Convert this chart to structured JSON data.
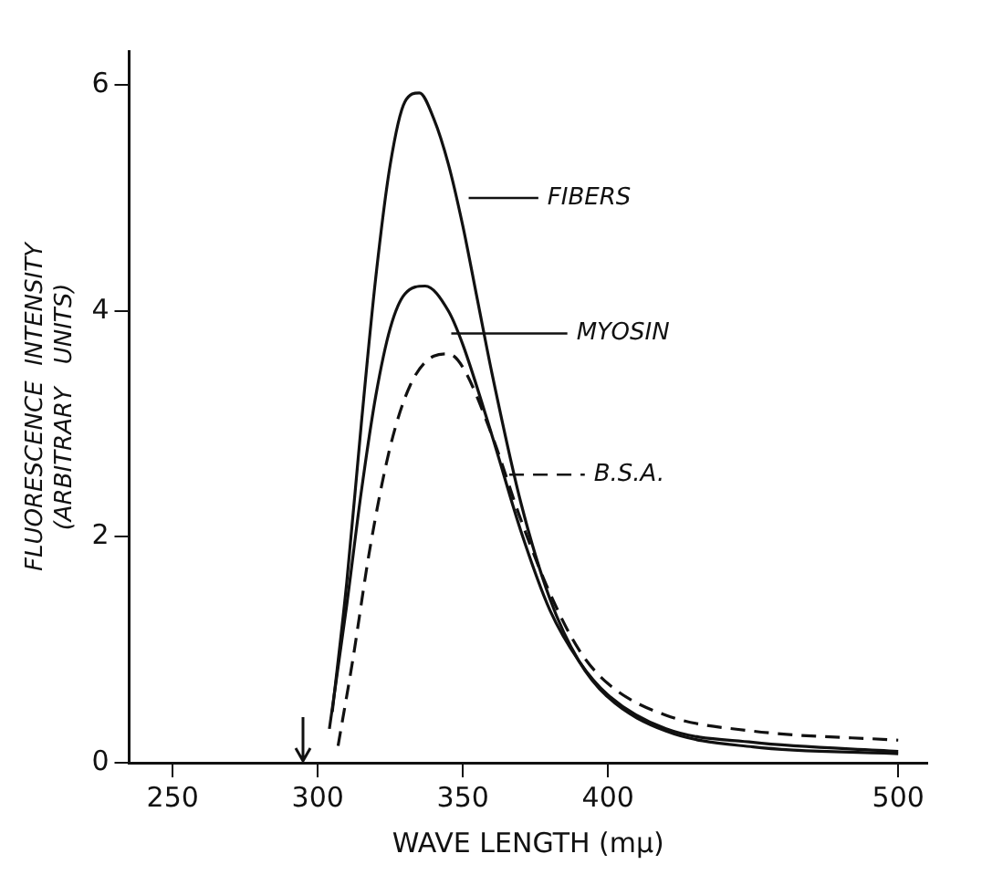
{
  "chart_data": {
    "type": "line",
    "xlabel": "WAVE LENGTH (mμ)",
    "ylabel": "FLUORESCENCE  INTENSITY\n(ARBITRARY   UNITS)",
    "xlim": [
      235,
      510
    ],
    "xticks": [
      250,
      300,
      350,
      400,
      500
    ],
    "ylim": [
      0,
      6.3
    ],
    "yticks": [
      0,
      2,
      4,
      6
    ],
    "grid": false,
    "legend": "right",
    "marker": "none",
    "series": [
      {
        "name": "FIBERS",
        "color": "#111111",
        "line_style": "solid",
        "x": [
          305,
          310,
          315,
          320,
          325,
          330,
          335,
          340,
          345,
          350,
          355,
          360,
          370,
          380,
          390,
          400,
          420,
          450,
          500
        ],
        "values": [
          0.45,
          1.6,
          3.0,
          4.3,
          5.3,
          5.85,
          5.93,
          5.7,
          5.3,
          4.75,
          4.1,
          3.45,
          2.3,
          1.45,
          0.9,
          0.58,
          0.28,
          0.14,
          0.08
        ]
      },
      {
        "name": "MYOSIN",
        "color": "#111111",
        "line_style": "solid",
        "x": [
          304,
          310,
          315,
          320,
          325,
          330,
          337,
          345,
          350,
          360,
          370,
          380,
          390,
          400,
          420,
          450,
          500
        ],
        "values": [
          0.3,
          1.4,
          2.4,
          3.25,
          3.85,
          4.15,
          4.22,
          4.0,
          3.7,
          2.9,
          2.05,
          1.35,
          0.9,
          0.6,
          0.3,
          0.18,
          0.1
        ]
      },
      {
        "name": "B.S.A.",
        "color": "#111111",
        "line_style": "dashed",
        "x": [
          307,
          312,
          318,
          325,
          332,
          340,
          345,
          350,
          360,
          370,
          380,
          390,
          400,
          420,
          450,
          500
        ],
        "values": [
          0.15,
          0.9,
          1.9,
          2.8,
          3.35,
          3.6,
          3.62,
          3.5,
          2.9,
          2.15,
          1.5,
          1.0,
          0.7,
          0.42,
          0.28,
          0.2
        ]
      }
    ]
  }
}
